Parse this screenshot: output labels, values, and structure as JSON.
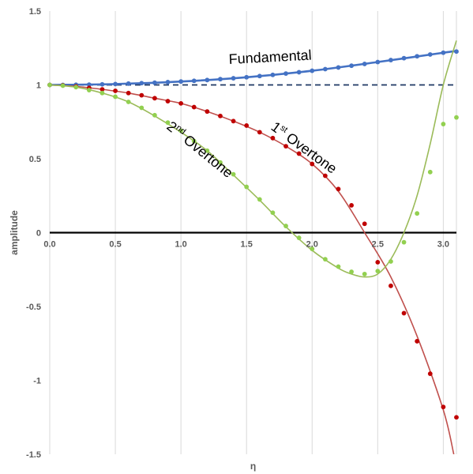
{
  "chart_data": {
    "type": "scatter",
    "xlabel": "η",
    "ylabel": "amplitude",
    "xlim": [
      0,
      3.1
    ],
    "ylim": [
      -1.5,
      1.5
    ],
    "x_ticks": [
      0.0,
      0.5,
      1.0,
      1.5,
      2.0,
      2.5,
      3.0
    ],
    "x_tick_labels": [
      "0.0",
      "0.5",
      "1.0",
      "1.5",
      "2.0",
      "2.5",
      "3.0"
    ],
    "y_ticks": [
      1.5,
      1.0,
      0.5,
      0.0,
      -0.5,
      -1.0,
      -1.5
    ],
    "y_tick_labels": [
      "1.5",
      "1",
      "0.5",
      "0",
      "-0.5",
      "-1",
      "-1.5"
    ],
    "grid": "vertical",
    "reference_lines": [
      {
        "y": 1.0,
        "style": "dashed",
        "color": "#1f3864"
      },
      {
        "y": 0.0,
        "style": "solid",
        "color": "#000000"
      }
    ],
    "series": [
      {
        "name": "Fundamental",
        "color": "#4472c4",
        "points_x": [
          0.0,
          0.1,
          0.2,
          0.3,
          0.4,
          0.5,
          0.6,
          0.7,
          0.8,
          0.9,
          1.0,
          1.1,
          1.2,
          1.3,
          1.4,
          1.5,
          1.6,
          1.7,
          1.8,
          1.9,
          2.0,
          2.1,
          2.2,
          2.3,
          2.4,
          2.5,
          2.6,
          2.7,
          2.8,
          2.9,
          3.0,
          3.1
        ],
        "points_y": [
          1.0,
          1.0,
          1.001,
          1.002,
          1.004,
          1.006,
          1.009,
          1.012,
          1.015,
          1.019,
          1.023,
          1.028,
          1.033,
          1.039,
          1.045,
          1.052,
          1.06,
          1.068,
          1.077,
          1.086,
          1.096,
          1.107,
          1.118,
          1.13,
          1.142,
          1.155,
          1.168,
          1.181,
          1.194,
          1.206,
          1.218,
          1.226
        ],
        "curve_x": [
          0.0,
          0.5,
          1.0,
          1.5,
          2.0,
          2.5,
          3.0,
          3.1
        ],
        "curve_y": [
          1.0,
          1.006,
          1.023,
          1.052,
          1.096,
          1.155,
          1.218,
          1.23
        ],
        "label": {
          "main": "Fundamental",
          "sup": "",
          "tail": ""
        }
      },
      {
        "name": "1st Overtone",
        "color": "#c00000",
        "curve_color": "#c0504d",
        "points_x": [
          0.0,
          0.1,
          0.2,
          0.3,
          0.4,
          0.5,
          0.6,
          0.7,
          0.8,
          0.9,
          1.0,
          1.1,
          1.2,
          1.3,
          1.4,
          1.5,
          1.6,
          1.7,
          1.8,
          1.9,
          2.0,
          2.1,
          2.2,
          2.3,
          2.4,
          2.5,
          2.6,
          2.7,
          2.8,
          2.9,
          3.0,
          3.1
        ],
        "points_y": [
          1.0,
          0.997,
          0.99,
          0.98,
          0.97,
          0.96,
          0.945,
          0.93,
          0.91,
          0.89,
          0.875,
          0.85,
          0.82,
          0.79,
          0.755,
          0.725,
          0.68,
          0.64,
          0.585,
          0.535,
          0.465,
          0.385,
          0.295,
          0.185,
          0.06,
          -0.2,
          -0.36,
          -0.545,
          -0.735,
          -0.955,
          -1.18,
          -1.25
        ],
        "curve_x": [
          0.0,
          0.2,
          0.4,
          0.6,
          0.8,
          1.0,
          1.2,
          1.4,
          1.6,
          1.8,
          2.0,
          2.2,
          2.4,
          2.6,
          2.8,
          3.0,
          3.08
        ],
        "curve_y": [
          1.0,
          0.99,
          0.97,
          0.945,
          0.91,
          0.875,
          0.82,
          0.755,
          0.68,
          0.585,
          0.465,
          0.28,
          0.0,
          -0.3,
          -0.7,
          -1.2,
          -1.5
        ],
        "label": {
          "main": "1",
          "sup": "st",
          "tail": " Overtone"
        }
      },
      {
        "name": "2nd Overtone",
        "color": "#92d050",
        "curve_color": "#9bbb59",
        "points_x": [
          0.0,
          0.1,
          0.2,
          0.3,
          0.4,
          0.5,
          0.6,
          0.7,
          0.8,
          0.9,
          1.0,
          1.1,
          1.2,
          1.3,
          1.4,
          1.5,
          1.6,
          1.7,
          1.8,
          1.9,
          2.0,
          2.1,
          2.2,
          2.3,
          2.4,
          2.5,
          2.6,
          2.7,
          2.8,
          2.9,
          3.0,
          3.1
        ],
        "points_y": [
          1.0,
          0.995,
          0.985,
          0.965,
          0.945,
          0.92,
          0.885,
          0.845,
          0.795,
          0.745,
          0.69,
          0.62,
          0.555,
          0.475,
          0.395,
          0.31,
          0.225,
          0.135,
          0.045,
          -0.035,
          -0.11,
          -0.18,
          -0.23,
          -0.265,
          -0.28,
          -0.26,
          -0.195,
          -0.065,
          0.13,
          0.41,
          0.735,
          0.78
        ],
        "curve_x": [
          0.0,
          0.2,
          0.4,
          0.6,
          0.8,
          1.0,
          1.2,
          1.4,
          1.6,
          1.8,
          2.0,
          2.2,
          2.3,
          2.4,
          2.5,
          2.6,
          2.7,
          2.8,
          2.9,
          3.0,
          3.1
        ],
        "curve_y": [
          1.0,
          0.985,
          0.945,
          0.885,
          0.79,
          0.68,
          0.555,
          0.39,
          0.22,
          0.04,
          -0.12,
          -0.24,
          -0.28,
          -0.3,
          -0.28,
          -0.18,
          0.0,
          0.25,
          0.6,
          1.0,
          1.3
        ],
        "label": {
          "main": "2",
          "sup": "nd",
          "tail": " Overtone"
        }
      }
    ]
  }
}
